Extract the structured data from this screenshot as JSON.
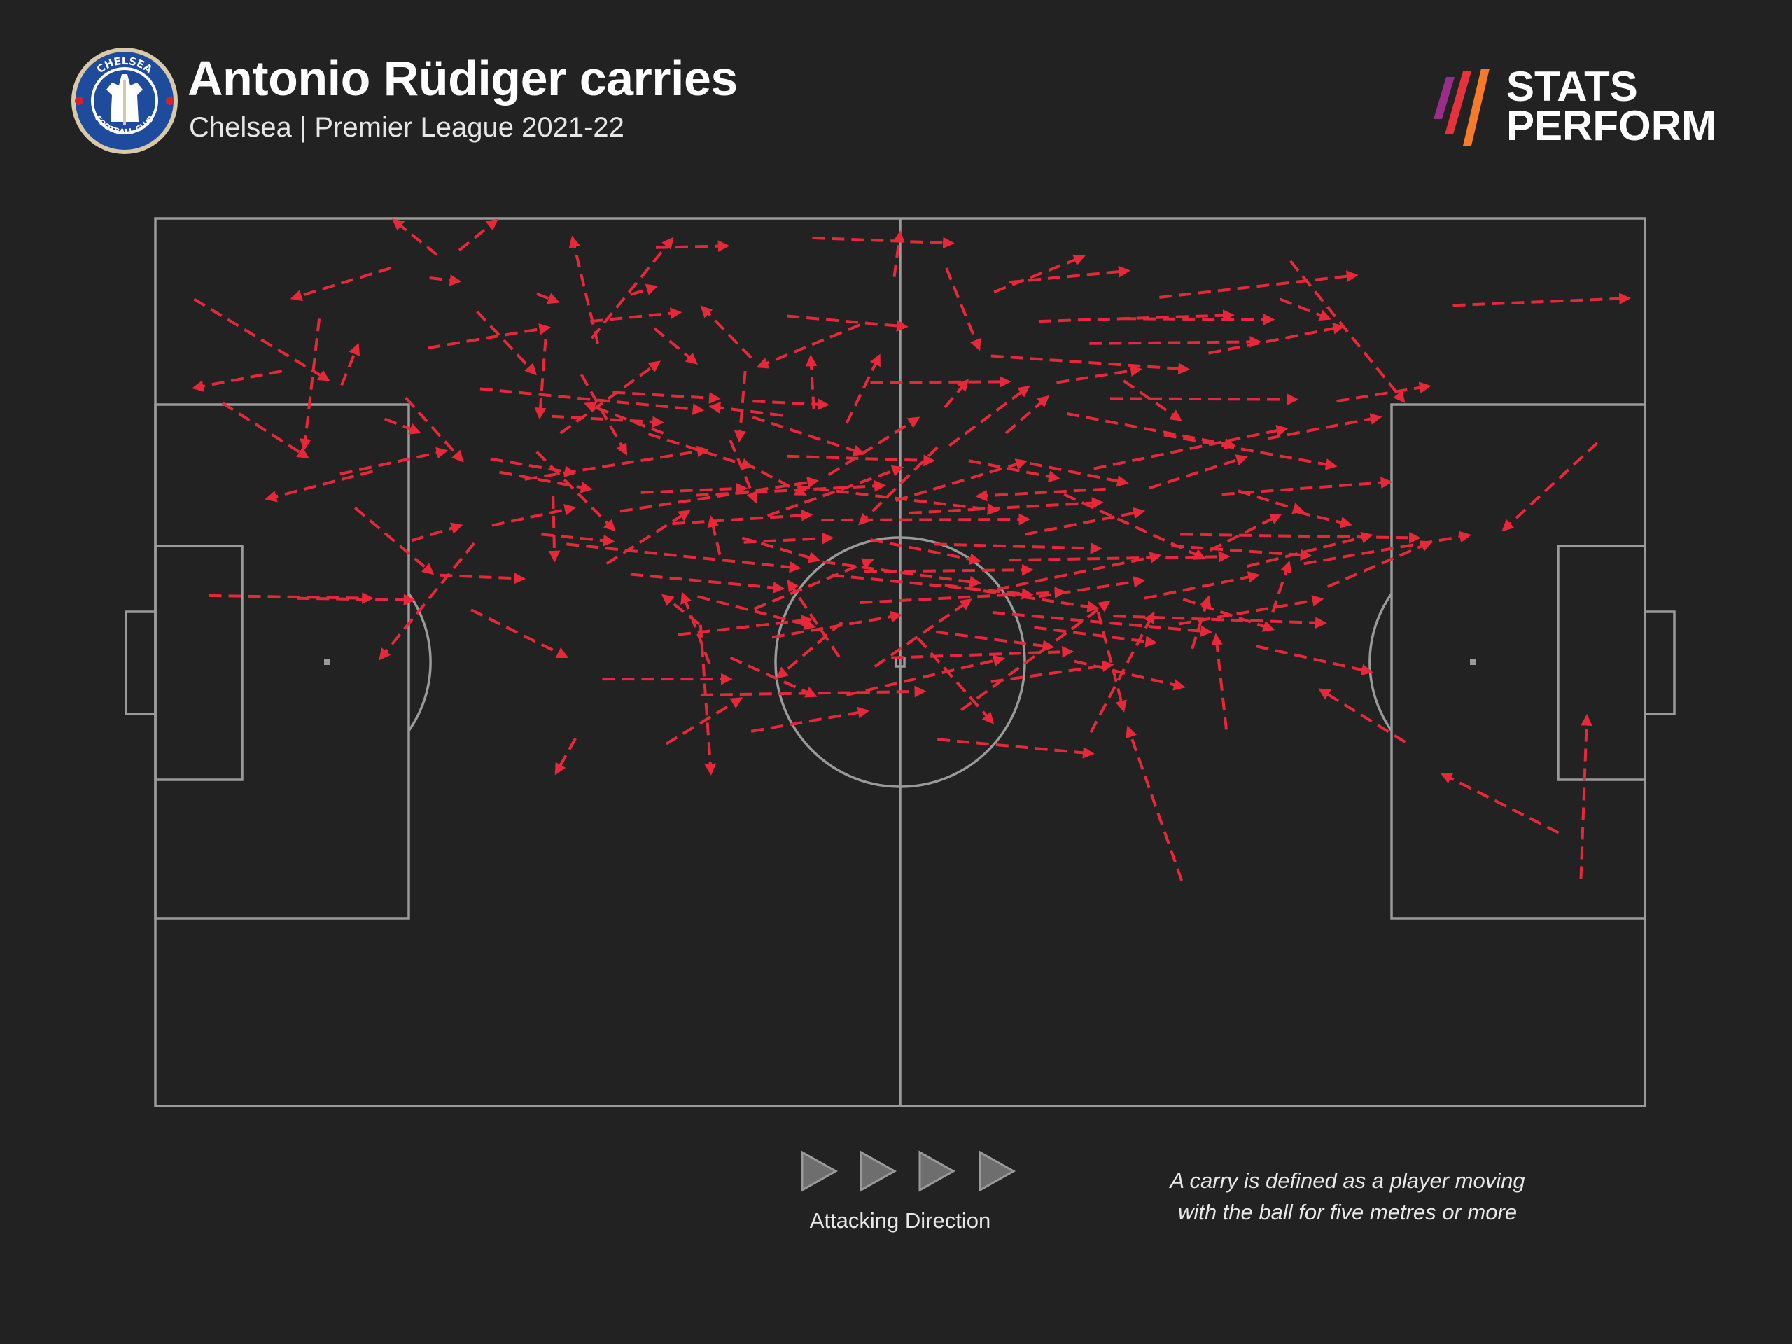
{
  "header": {
    "title": "Antonio Rüdiger carries",
    "subtitle": "Chelsea | Premier League 2021-22"
  },
  "crest": {
    "icon": "chelsea-crest-icon",
    "text_top": "CHELSEA",
    "text_bottom": "FOOTBALL CLUB"
  },
  "brand": {
    "icon": "stats-perform-logo-icon",
    "line1": "STATS",
    "line2": "PERFORM",
    "colors": [
      "#e6323e",
      "#f57a2c",
      "#9b2c8a"
    ]
  },
  "legend": {
    "direction_label": "Attacking Direction",
    "direction_icon": "play-arrow-icon"
  },
  "note": {
    "line1": "A carry is defined as a player moving",
    "line2": "with the ball for five metres or more"
  },
  "colors": {
    "background": "#222222",
    "pitch_lines": "#9a9a9a",
    "carry": "#e8283a"
  },
  "chart_data": {
    "type": "scatter",
    "description_units": "pitch coordinates 0-100 (x = length toward attacking goal on the right, y = width from top touchline)",
    "xlim": [
      0,
      100
    ],
    "ylim": [
      0,
      100
    ],
    "attacking_direction": "right",
    "grid": false,
    "legend": "none",
    "carries": [
      [
        2.6,
        9.1,
        11.6,
        18.2
      ],
      [
        15.8,
        5.6,
        9.2,
        9.0
      ],
      [
        18.9,
        4.1,
        16.0,
        0.2
      ],
      [
        11.0,
        11.3,
        10.0,
        25.9
      ],
      [
        20.4,
        3.6,
        22.9,
        0.2
      ],
      [
        33.6,
        3.3,
        38.4,
        3.1
      ],
      [
        29.7,
        14.1,
        28.0,
        2.2
      ],
      [
        44.1,
        2.2,
        53.5,
        2.8
      ],
      [
        8.5,
        17.2,
        2.6,
        19.1
      ],
      [
        26.2,
        13.6,
        25.8,
        22.4
      ],
      [
        4.5,
        20.8,
        10.2,
        26.9
      ],
      [
        3.6,
        42.5,
        14.5,
        42.8
      ],
      [
        15.4,
        22.6,
        17.7,
        24.1
      ],
      [
        14.6,
        28.5,
        7.5,
        31.6
      ],
      [
        21.8,
        19.2,
        36.7,
        21.6
      ],
      [
        23.1,
        28.6,
        29.2,
        30.5
      ],
      [
        26.6,
        22.3,
        34.0,
        23.0
      ],
      [
        27.2,
        24.2,
        33.8,
        16.2
      ],
      [
        21.4,
        36.6,
        15.1,
        49.6
      ],
      [
        27.6,
        36.7,
        43.2,
        39.4
      ],
      [
        39.4,
        36.0,
        44.5,
        38.5
      ],
      [
        36.5,
        45.7,
        34.1,
        42.5
      ],
      [
        36.6,
        45.8,
        37.3,
        62.5
      ],
      [
        38.6,
        25.0,
        40.3,
        31.9
      ],
      [
        34.1,
        24.2,
        28.9,
        20.9
      ],
      [
        29.3,
        13.5,
        34.7,
        2.3
      ],
      [
        40.0,
        15.7,
        36.7,
        10.0
      ],
      [
        42.1,
        22.2,
        37.3,
        21.2
      ],
      [
        47.3,
        12.0,
        40.5,
        16.7
      ],
      [
        49.6,
        6.6,
        50.0,
        1.6
      ],
      [
        53.1,
        5.6,
        55.3,
        14.7
      ],
      [
        56.3,
        8.3,
        62.3,
        4.3
      ],
      [
        59.3,
        11.6,
        72.3,
        10.9
      ],
      [
        65.0,
        11.3,
        75.0,
        11.4
      ],
      [
        56.1,
        15.5,
        69.3,
        17.0
      ],
      [
        61.2,
        22.0,
        72.4,
        25.6
      ],
      [
        63.0,
        28.2,
        75.9,
        23.7
      ],
      [
        63.8,
        30.5,
        55.2,
        31.3
      ],
      [
        52.5,
        25.8,
        47.3,
        34.4
      ],
      [
        48.0,
        36.2,
        55.3,
        38.6
      ],
      [
        45.4,
        40.2,
        58.8,
        42.4
      ],
      [
        40.2,
        44.0,
        48.1,
        38.5
      ],
      [
        46.1,
        45.5,
        41.8,
        51.7
      ],
      [
        38.6,
        49.5,
        44.3,
        53.8
      ],
      [
        36.6,
        53.7,
        51.6,
        53.3
      ],
      [
        54.1,
        55.4,
        64.0,
        43.2
      ],
      [
        59.3,
        42.6,
        66.3,
        40.8
      ],
      [
        64.3,
        44.8,
        78.5,
        45.6
      ],
      [
        68.8,
        35.6,
        84.8,
        36.0
      ],
      [
        71.6,
        31.1,
        82.9,
        29.7
      ],
      [
        67.4,
        8.9,
        80.6,
        6.4
      ],
      [
        70.7,
        15.2,
        79.7,
        12.2
      ],
      [
        76.2,
        4.8,
        83.8,
        20.6
      ],
      [
        87.1,
        9.8,
        98.9,
        9.0
      ],
      [
        96.8,
        25.3,
        90.5,
        35.1
      ],
      [
        95.7,
        74.4,
        96.1,
        56.1
      ],
      [
        94.2,
        69.2,
        86.4,
        62.6
      ],
      [
        83.9,
        59.0,
        78.2,
        53.1
      ],
      [
        68.9,
        74.6,
        65.3,
        57.4
      ],
      [
        56.1,
        52.2,
        64.2,
        50.3
      ],
      [
        52.5,
        58.7,
        62.9,
        60.3
      ],
      [
        51.2,
        47.3,
        56.2,
        56.8
      ],
      [
        45.9,
        49.4,
        42.5,
        40.9
      ],
      [
        37.2,
        50.2,
        35.4,
        42.3
      ],
      [
        24.8,
        29.4,
        37.0,
        26.1
      ],
      [
        31.2,
        33.0,
        44.4,
        29.6
      ],
      [
        36.3,
        31.2,
        48.9,
        30.1
      ],
      [
        43.1,
        30.2,
        56.5,
        32.9
      ],
      [
        44.7,
        34.0,
        58.6,
        33.9
      ],
      [
        50.6,
        33.2,
        63.5,
        32.0
      ],
      [
        61.0,
        31.1,
        70.4,
        38.3
      ],
      [
        68.2,
        36.9,
        77.5,
        38.0
      ],
      [
        73.3,
        39.2,
        81.6,
        35.7
      ],
      [
        77.1,
        38.9,
        88.2,
        35.7
      ],
      [
        57.3,
        38.5,
        72.0,
        38.1
      ],
      [
        52.3,
        36.7,
        63.4,
        37.2
      ],
      [
        44.8,
        38.7,
        55.3,
        41.1
      ],
      [
        31.9,
        40.1,
        42.1,
        41.7
      ],
      [
        36.4,
        42.6,
        44.2,
        46.0
      ],
      [
        39.5,
        36.5,
        45.4,
        36.0
      ],
      [
        47.3,
        43.3,
        61.0,
        42.1
      ],
      [
        56.2,
        44.4,
        70.8,
        46.6
      ],
      [
        66.4,
        42.8,
        74.0,
        40.2
      ],
      [
        59.0,
        46.1,
        67.1,
        47.8
      ],
      [
        68.7,
        45.7,
        78.3,
        42.9
      ],
      [
        42.4,
        26.8,
        52.2,
        27.3
      ],
      [
        33.1,
        24.3,
        40.0,
        28.0
      ],
      [
        22.6,
        34.6,
        28.1,
        32.6
      ],
      [
        26.7,
        31.3,
        26.8,
        38.5
      ],
      [
        19.1,
        40.2,
        24.7,
        40.6
      ],
      [
        12.4,
        28.8,
        19.5,
        26.2
      ],
      [
        9.5,
        42.8,
        17.3,
        43.0
      ],
      [
        13.4,
        32.6,
        18.6,
        40.0
      ],
      [
        16.8,
        20.2,
        20.6,
        27.3
      ],
      [
        21.6,
        10.5,
        25.5,
        17.5
      ],
      [
        28.6,
        17.6,
        31.6,
        26.5
      ],
      [
        30.7,
        19.6,
        37.8,
        20.3
      ],
      [
        40.1,
        20.6,
        45.1,
        21.0
      ],
      [
        39.6,
        17.2,
        39.2,
        25.0
      ],
      [
        46.4,
        23.1,
        48.6,
        15.5
      ],
      [
        53.0,
        21.3,
        54.5,
        18.3
      ],
      [
        53.3,
        25.6,
        58.6,
        19.0
      ],
      [
        57.1,
        24.2,
        59.9,
        20.1
      ],
      [
        60.5,
        18.5,
        66.1,
        17.0
      ],
      [
        65.0,
        18.3,
        68.8,
        22.7
      ],
      [
        64.1,
        20.3,
        76.6,
        20.4
      ],
      [
        67.7,
        24.4,
        79.2,
        27.9
      ],
      [
        74.7,
        24.8,
        82.2,
        22.4
      ],
      [
        72.7,
        30.7,
        77.0,
        33.0
      ],
      [
        54.6,
        27.3,
        60.6,
        29.3
      ],
      [
        45.2,
        28.9,
        51.2,
        22.5
      ],
      [
        49.7,
        31.8,
        58.4,
        27.4
      ],
      [
        34.7,
        34.4,
        44.0,
        33.4
      ],
      [
        39.5,
        27.5,
        43.6,
        31.1
      ],
      [
        25.6,
        26.3,
        30.8,
        35.1
      ],
      [
        17.2,
        36.3,
        20.5,
        34.6
      ],
      [
        21.2,
        44.1,
        27.6,
        49.4
      ],
      [
        30.0,
        51.9,
        38.6,
        51.9
      ],
      [
        41.4,
        47.2,
        50.0,
        44.7
      ],
      [
        48.3,
        50.5,
        54.7,
        43.0
      ],
      [
        52.4,
        46.6,
        60.2,
        48.3
      ],
      [
        61.7,
        49.9,
        69.0,
        52.8
      ],
      [
        69.6,
        48.5,
        70.7,
        42.7
      ],
      [
        75.0,
        44.4,
        76.1,
        38.8
      ],
      [
        78.7,
        41.5,
        85.6,
        36.5
      ],
      [
        73.9,
        48.2,
        81.6,
        51.1
      ],
      [
        62.8,
        57.9,
        67.0,
        44.5
      ],
      [
        71.9,
        57.6,
        71.2,
        47.0
      ],
      [
        63.3,
        44.4,
        65.0,
        55.4
      ],
      [
        46.4,
        53.7,
        56.9,
        49.6
      ],
      [
        40.0,
        57.8,
        47.8,
        55.5
      ],
      [
        34.3,
        59.2,
        39.3,
        54.1
      ],
      [
        28.2,
        58.6,
        26.9,
        62.5
      ],
      [
        37.9,
        37.9,
        37.3,
        33.7
      ],
      [
        44.2,
        21.5,
        44.0,
        15.6
      ],
      [
        31.9,
        8.6,
        33.6,
        7.7
      ],
      [
        25.6,
        8.5,
        27.0,
        9.4
      ],
      [
        18.4,
        6.7,
        20.4,
        7.1
      ],
      [
        29.2,
        11.6,
        35.2,
        10.6
      ],
      [
        57.3,
        7.2,
        65.3,
        5.9
      ],
      [
        75.5,
        9.1,
        78.8,
        11.3
      ],
      [
        79.3,
        20.6,
        85.5,
        18.9
      ],
      [
        62.7,
        14.1,
        74.1,
        13.9
      ],
      [
        48.0,
        18.5,
        57.3,
        18.4
      ],
      [
        40.1,
        22.4,
        47.5,
        26.5
      ],
      [
        22.5,
        27.1,
        28.1,
        28.7
      ],
      [
        33.5,
        12.4,
        36.3,
        16.3
      ],
      [
        42.4,
        11.0,
        50.4,
        12.2
      ],
      [
        18.3,
        14.6,
        26.4,
        12.3
      ],
      [
        12.5,
        18.8,
        13.6,
        14.3
      ],
      [
        32.6,
        30.9,
        39.6,
        30.4
      ],
      [
        41.1,
        33.5,
        50.1,
        28.1
      ],
      [
        58.4,
        35.6,
        66.3,
        33.0
      ],
      [
        66.7,
        30.4,
        73.2,
        26.9
      ],
      [
        47.6,
        39.8,
        58.8,
        39.6
      ],
      [
        53.0,
        41.3,
        63.2,
        43.9
      ],
      [
        35.1,
        46.9,
        44.0,
        45.2
      ],
      [
        25.9,
        35.6,
        30.7,
        36.4
      ],
      [
        30.3,
        38.9,
        35.8,
        33.0
      ],
      [
        49.4,
        49.5,
        61.5,
        48.8
      ],
      [
        56.5,
        41.8,
        67.4,
        38.0
      ],
      [
        69.0,
        42.9,
        75.0,
        46.3
      ],
      [
        70.8,
        37.4,
        75.5,
        33.4
      ],
      [
        76.7,
        33.1,
        80.2,
        34.5
      ],
      [
        58.7,
        27.6,
        65.2,
        29.8
      ]
    ]
  }
}
